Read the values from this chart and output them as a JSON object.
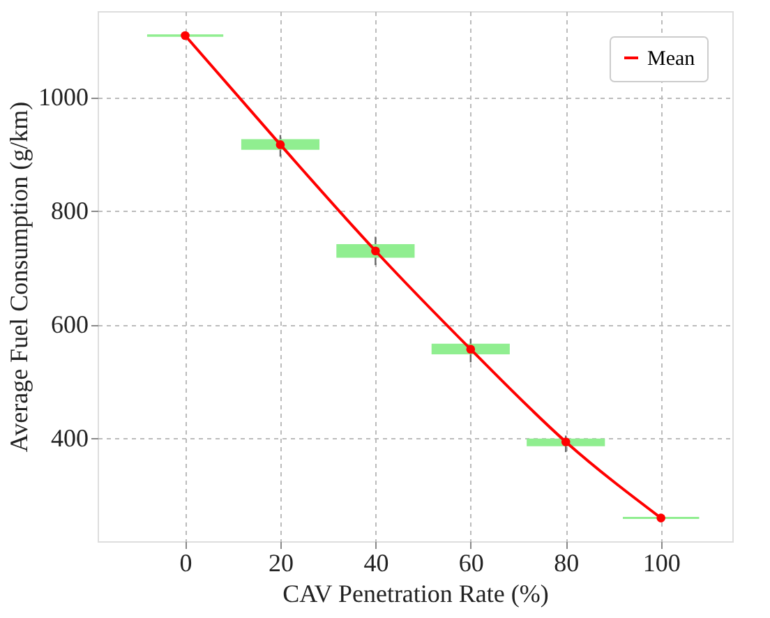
{
  "chart_data": {
    "type": "box",
    "xlabel": "CAV Penetration Rate (%)",
    "ylabel": "Average Fuel Consumption (g/km)",
    "x": [
      0,
      20,
      40,
      60,
      80,
      100
    ],
    "xlim": [
      -18.4,
      115
    ],
    "xticks": [
      0,
      20,
      40,
      60,
      80,
      100
    ],
    "ylim": [
      219,
      1152
    ],
    "yticks": [
      400,
      600,
      800,
      1000
    ],
    "grid": true,
    "legend": "top right",
    "series": [
      {
        "color": "#90ee90",
        "boxes": [
          {
            "low": 1109,
            "q1": 1109,
            "median": 1109,
            "q3": 1109,
            "high": 1109
          },
          {
            "low": 896,
            "q1": 910,
            "median": 917,
            "q3": 925,
            "high": 934
          },
          {
            "low": 705,
            "q1": 720,
            "median": 730,
            "q3": 740,
            "high": 755
          },
          {
            "low": 534,
            "q1": 550,
            "median": 557,
            "q3": 565,
            "high": 575
          },
          {
            "low": 376,
            "q1": 388,
            "median": 394,
            "q3": 398,
            "high": 405
          },
          {
            "low": 260,
            "q1": 260,
            "median": 260,
            "q3": 260,
            "high": 260
          }
        ]
      },
      {
        "type": "line",
        "name": "Mean",
        "color": "#ff0000",
        "marker": "circle",
        "line_style": "solid",
        "values": [
          1109,
          917,
          730,
          557,
          394,
          260
        ]
      }
    ]
  }
}
